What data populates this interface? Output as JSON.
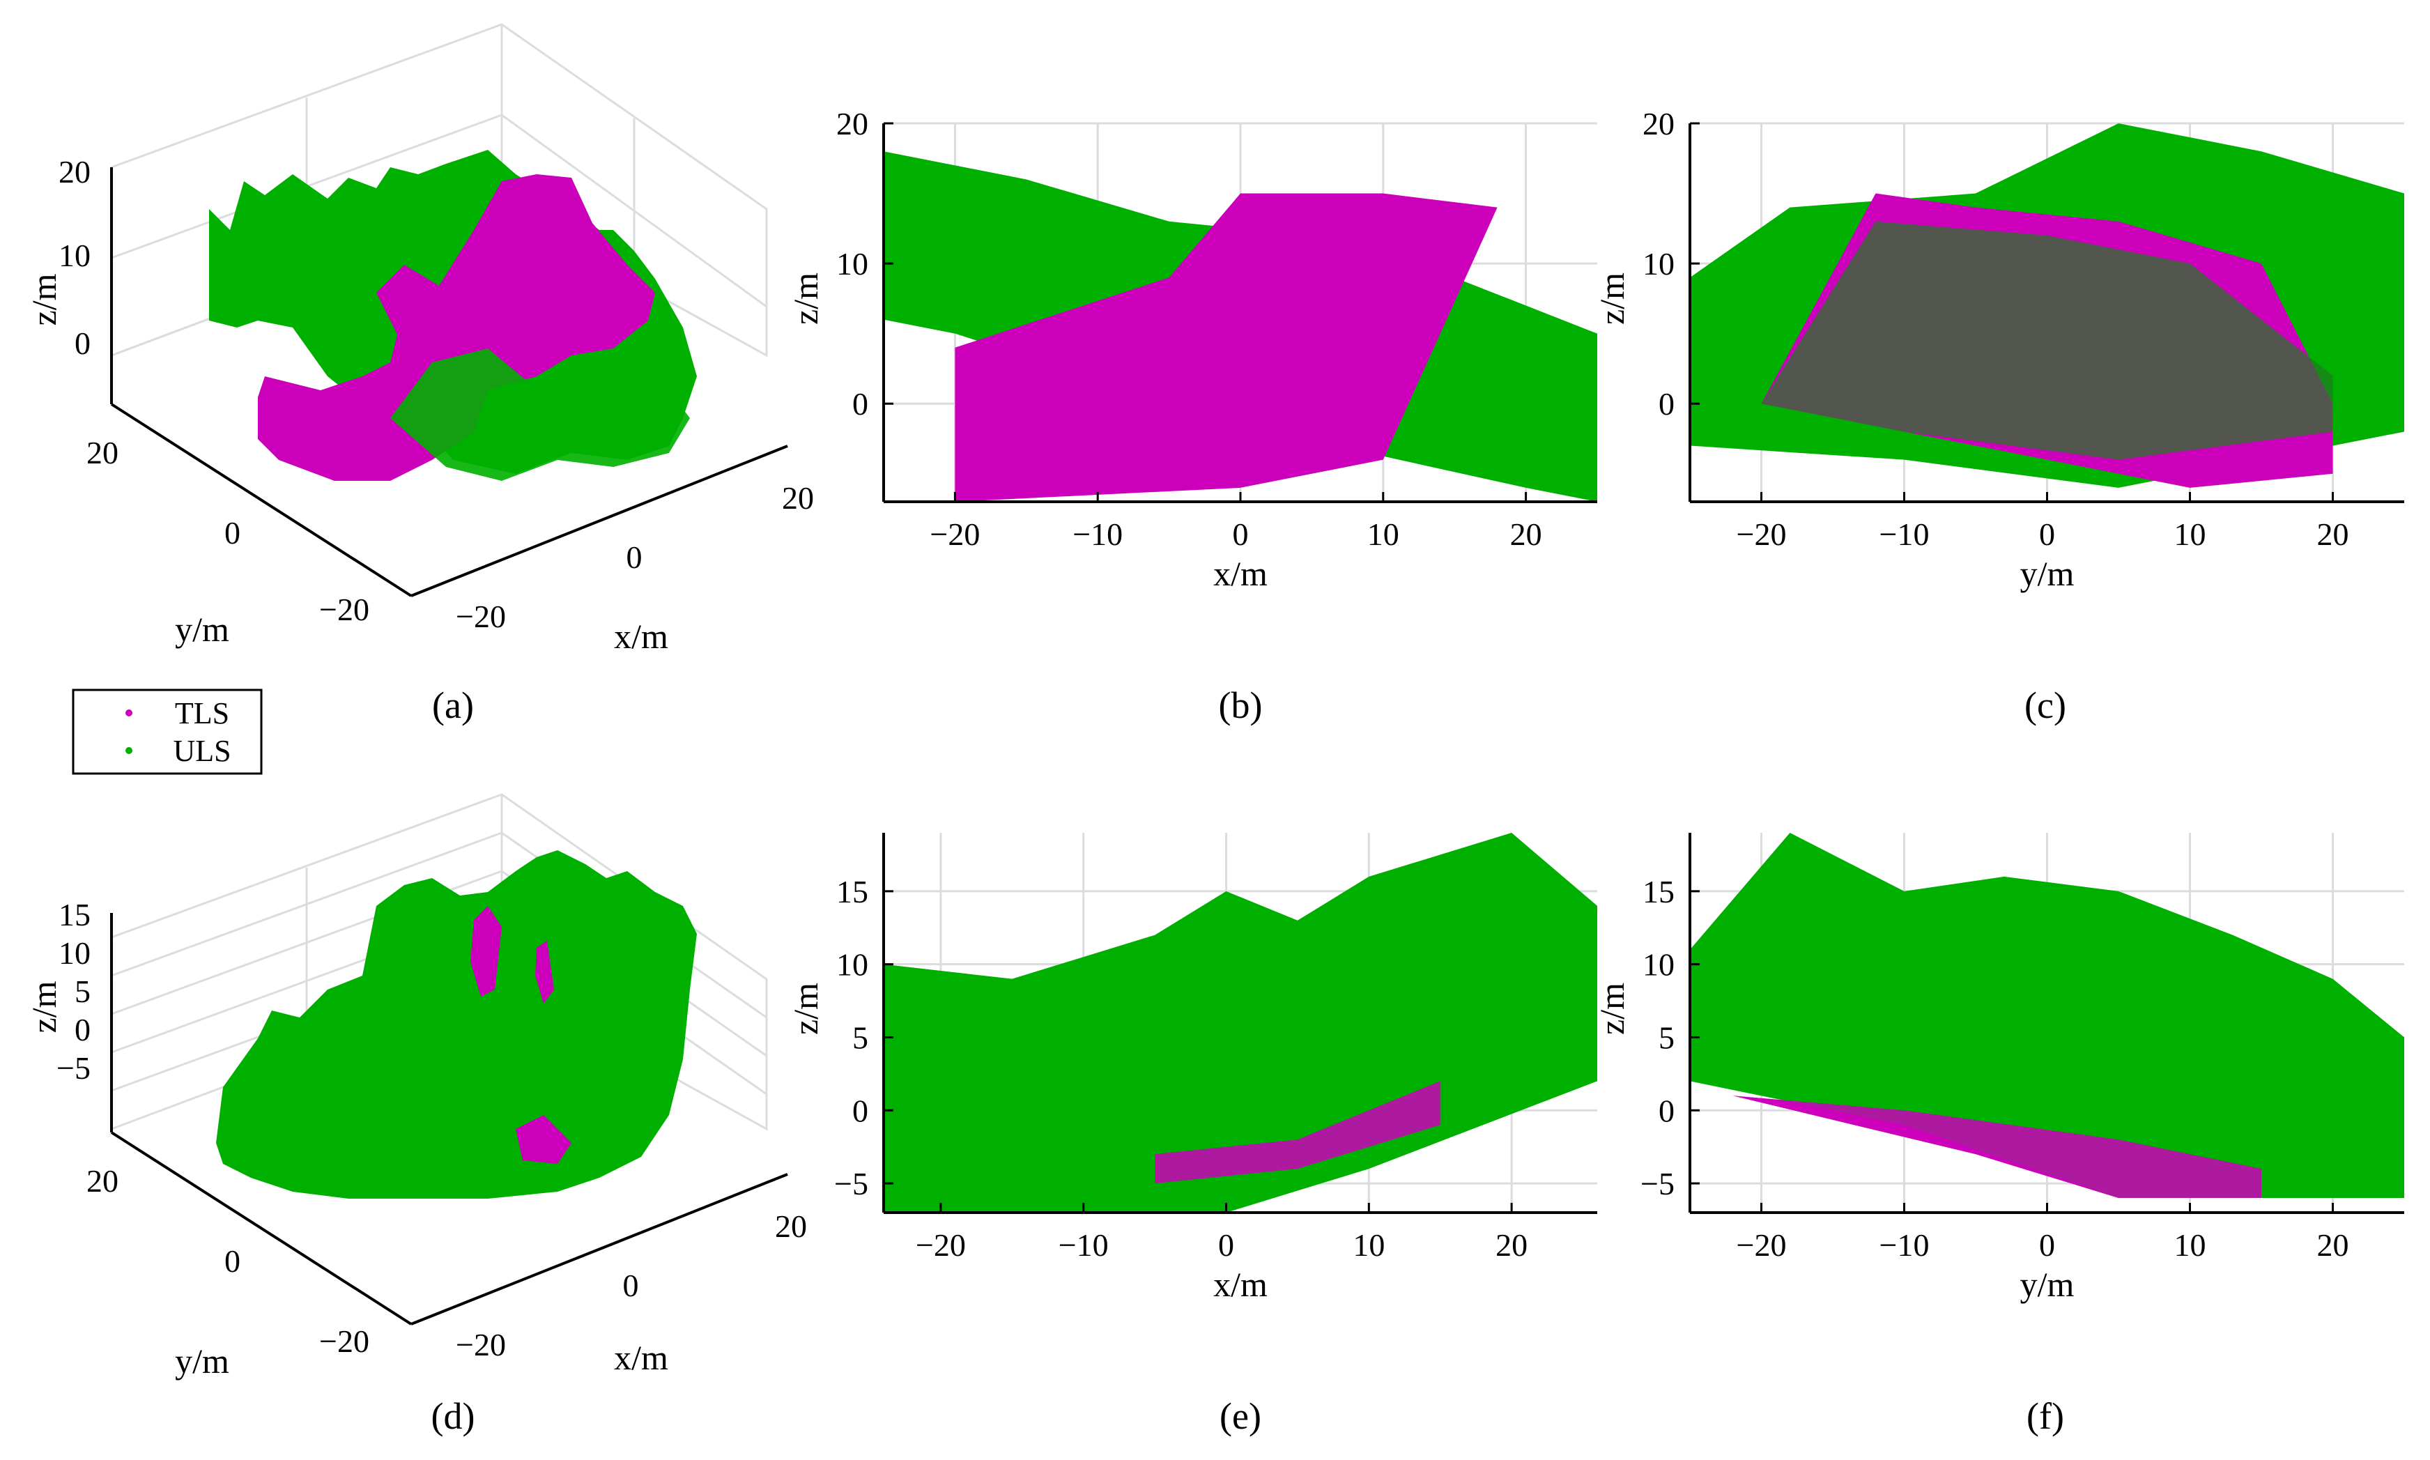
{
  "figure": {
    "panels": {
      "a": "(a)",
      "b": "(b)",
      "c": "(c)",
      "d": "(d)",
      "e": "(e)",
      "f": "(f)"
    }
  },
  "legend": {
    "items": [
      {
        "label": "TLS",
        "color": "#cc00bb"
      },
      {
        "label": "ULS",
        "color": "#00b000"
      }
    ]
  },
  "colors": {
    "tls": "#cc00bb",
    "uls": "#00b000",
    "uls_dark": "#1f7a1f",
    "grid": "#dcdcdc",
    "axis": "#000000"
  },
  "chart_data": [
    {
      "panel": "(a)",
      "type": "scatter",
      "view": "3d",
      "xlabel": "x/m",
      "ylabel": "y/m",
      "zlabel": "z/m",
      "xticks": [
        "−20",
        "0",
        "20"
      ],
      "yticks": [
        "−20",
        "0",
        "20"
      ],
      "zticks": [
        "0",
        "10",
        "20"
      ],
      "series": [
        "TLS",
        "ULS"
      ]
    },
    {
      "panel": "(b)",
      "type": "scatter",
      "view": "side",
      "xlabel": "x/m",
      "ylabel": "z/m",
      "xlim": [
        -25,
        25
      ],
      "ylim": [
        -7,
        20
      ],
      "xticks": [
        "−20",
        "−10",
        "0",
        "10",
        "20"
      ],
      "yticks": [
        "0",
        "10",
        "20"
      ],
      "ytick_values": [
        0,
        10,
        20
      ],
      "xtick_values": [
        -20,
        -10,
        0,
        10,
        20
      ],
      "series": [
        {
          "name": "ULS",
          "canopy_top": [
            [
              -25,
              18
            ],
            [
              -15,
              16
            ],
            [
              -5,
              13
            ],
            [
              5,
              12
            ],
            [
              15,
              9
            ],
            [
              25,
              5
            ]
          ],
          "ground": [
            [
              -25,
              6
            ],
            [
              -20,
              5
            ],
            [
              0,
              -1.5
            ],
            [
              20,
              -6
            ],
            [
              25,
              -7
            ]
          ]
        },
        {
          "name": "TLS",
          "canopy_top": [
            [
              -20,
              4
            ],
            [
              -5,
              9
            ],
            [
              0,
              15
            ],
            [
              10,
              15
            ],
            [
              18,
              14
            ]
          ],
          "ground": [
            [
              -20,
              -7
            ],
            [
              0,
              -6
            ],
            [
              10,
              -4
            ]
          ]
        }
      ]
    },
    {
      "panel": "(c)",
      "type": "scatter",
      "view": "side",
      "xlabel": "y/m",
      "ylabel": "z/m",
      "xlim": [
        -25,
        25
      ],
      "ylim": [
        -7,
        20
      ],
      "xticks": [
        "−20",
        "−10",
        "0",
        "10",
        "20"
      ],
      "yticks": [
        "0",
        "10",
        "20"
      ],
      "ytick_values": [
        0,
        10,
        20
      ],
      "xtick_values": [
        -20,
        -10,
        0,
        10,
        20
      ],
      "series": [
        {
          "name": "ULS",
          "canopy_top": [
            [
              -25,
              9
            ],
            [
              -18,
              14
            ],
            [
              -5,
              15
            ],
            [
              5,
              20
            ],
            [
              15,
              18
            ],
            [
              25,
              15
            ]
          ],
          "ground": [
            [
              -25,
              -3
            ],
            [
              -10,
              -4
            ],
            [
              5,
              -6
            ],
            [
              25,
              -2
            ]
          ]
        },
        {
          "name": "TLS",
          "canopy_top": [
            [
              -20,
              0
            ],
            [
              -12,
              15
            ],
            [
              -5,
              14
            ],
            [
              5,
              13
            ],
            [
              15,
              10
            ],
            [
              20,
              0
            ]
          ],
          "ground": [
            [
              -20,
              0
            ],
            [
              0,
              -4
            ],
            [
              10,
              -6
            ],
            [
              20,
              -5
            ]
          ]
        }
      ]
    },
    {
      "panel": "(d)",
      "type": "scatter",
      "view": "3d",
      "xlabel": "x/m",
      "ylabel": "y/m",
      "zlabel": "z/m",
      "xticks": [
        "−20",
        "0",
        "20"
      ],
      "yticks": [
        "−20",
        "0",
        "20"
      ],
      "zticks": [
        "−5",
        "0",
        "5",
        "10",
        "15"
      ],
      "series": [
        "TLS",
        "ULS"
      ]
    },
    {
      "panel": "(e)",
      "type": "scatter",
      "view": "side",
      "xlabel": "x/m",
      "ylabel": "z/m",
      "xlim": [
        -24,
        26
      ],
      "ylim": [
        -7,
        19
      ],
      "xticks": [
        "−20",
        "−10",
        "0",
        "10",
        "20"
      ],
      "yticks": [
        "−5",
        "0",
        "5",
        "10",
        "15"
      ],
      "ytick_values": [
        -5,
        0,
        5,
        10,
        15
      ],
      "xtick_values": [
        -20,
        -10,
        0,
        10,
        20
      ],
      "series": [
        {
          "name": "ULS",
          "canopy_top": [
            [
              -24,
              10
            ],
            [
              -15,
              9
            ],
            [
              -5,
              12
            ],
            [
              0,
              15
            ],
            [
              5,
              13
            ],
            [
              10,
              16
            ],
            [
              20,
              19
            ],
            [
              26,
              14
            ]
          ],
          "ground": [
            [
              -24,
              -7
            ],
            [
              0,
              -7
            ],
            [
              10,
              -4
            ],
            [
              26,
              2
            ]
          ]
        },
        {
          "name": "TLS",
          "canopy_top": [
            [
              -5,
              -3
            ],
            [
              5,
              -2
            ],
            [
              15,
              2
            ]
          ],
          "ground": [
            [
              -5,
              -5
            ],
            [
              5,
              -4
            ],
            [
              15,
              -1
            ]
          ]
        }
      ]
    },
    {
      "panel": "(f)",
      "type": "scatter",
      "view": "side",
      "xlabel": "y/m",
      "ylabel": "z/m",
      "xlim": [
        -25,
        25
      ],
      "ylim": [
        -7,
        19
      ],
      "xticks": [
        "−20",
        "−10",
        "0",
        "10",
        "20"
      ],
      "yticks": [
        "−5",
        "0",
        "5",
        "10",
        "15"
      ],
      "ytick_values": [
        -5,
        0,
        5,
        10,
        15
      ],
      "xtick_values": [
        -20,
        -10,
        0,
        10,
        20
      ],
      "series": [
        {
          "name": "ULS",
          "canopy_top": [
            [
              -25,
              11
            ],
            [
              -18,
              19
            ],
            [
              -10,
              15
            ],
            [
              -3,
              16
            ],
            [
              5,
              15
            ],
            [
              13,
              12
            ],
            [
              20,
              9
            ],
            [
              25,
              5
            ]
          ],
          "ground": [
            [
              -25,
              2
            ],
            [
              -10,
              -1
            ],
            [
              5,
              -6
            ],
            [
              25,
              -6
            ]
          ]
        },
        {
          "name": "TLS",
          "canopy_top": [
            [
              -22,
              1
            ],
            [
              -10,
              0
            ],
            [
              5,
              -2
            ],
            [
              15,
              -4
            ]
          ],
          "ground": [
            [
              -22,
              1
            ],
            [
              -5,
              -3
            ],
            [
              5,
              -6
            ],
            [
              15,
              -6
            ]
          ]
        }
      ]
    }
  ]
}
